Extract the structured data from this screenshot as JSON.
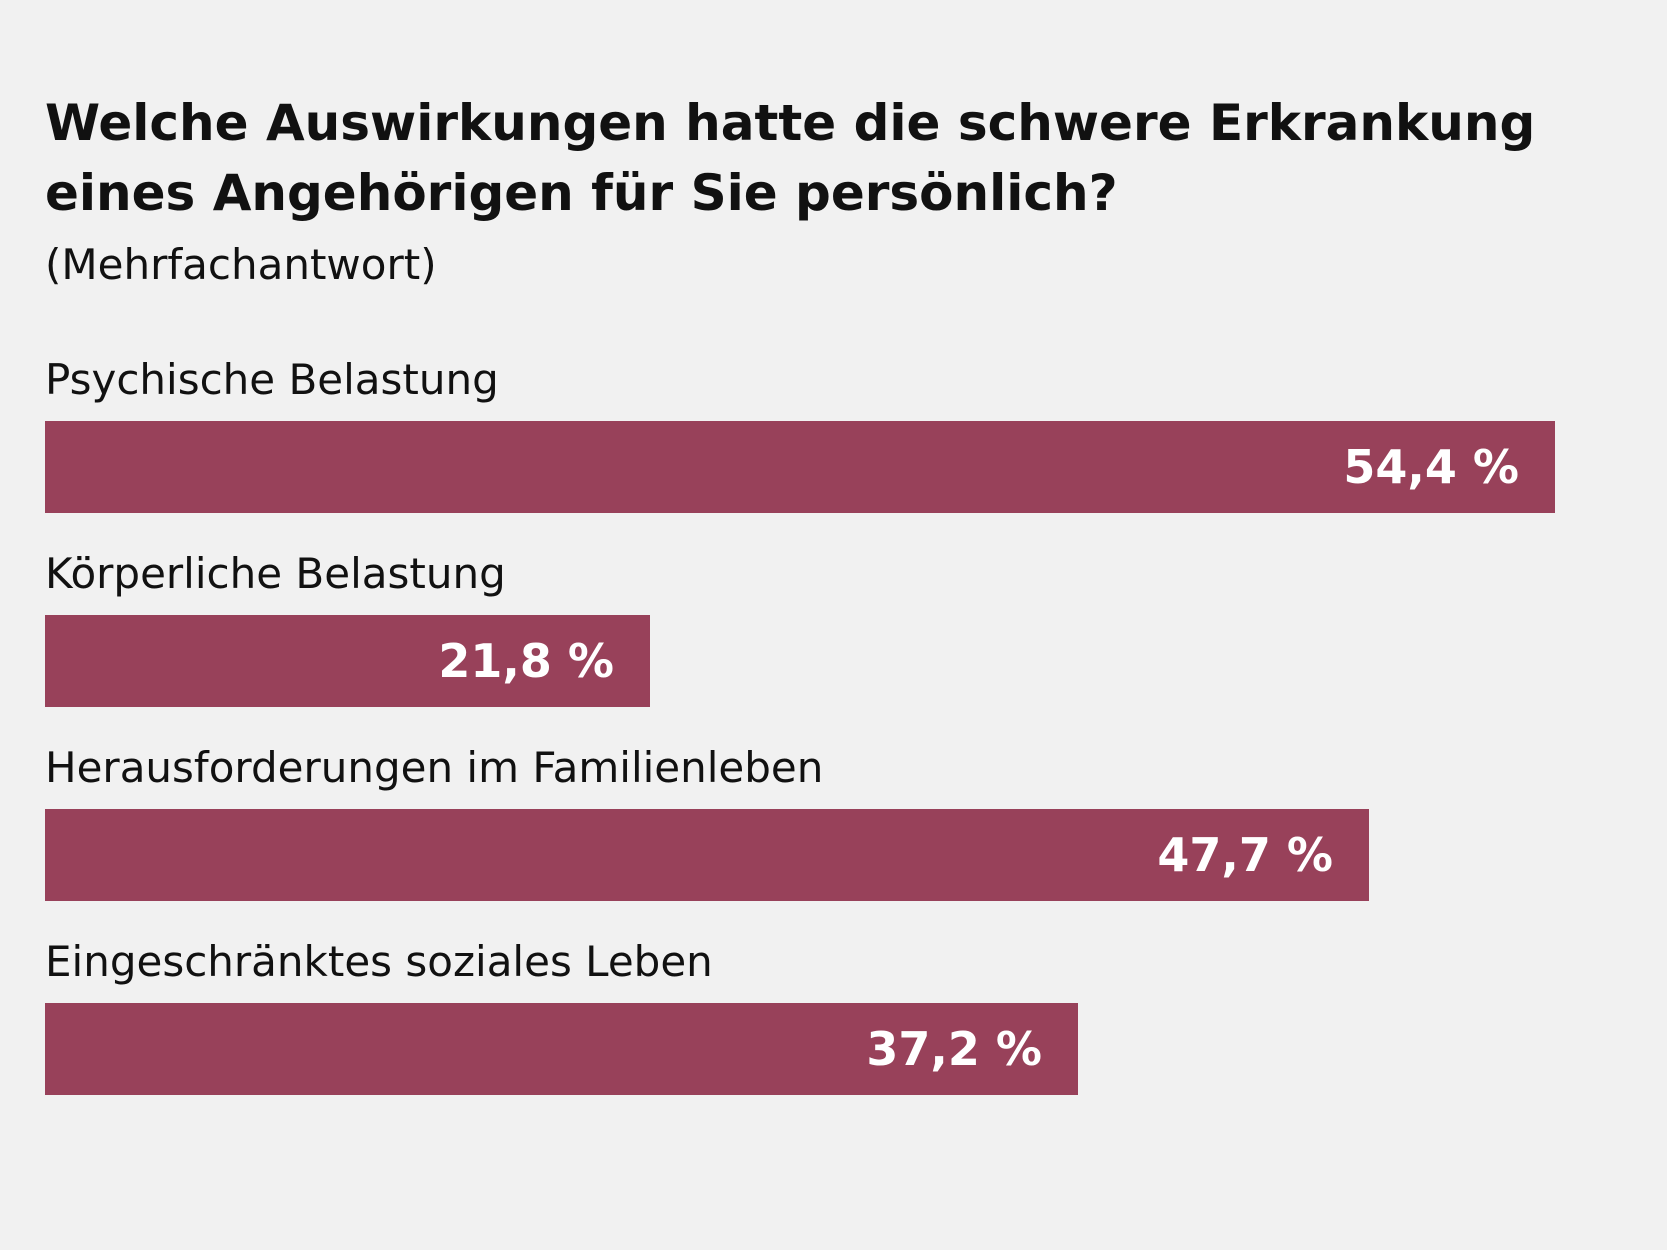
{
  "title": "Welche Auswirkungen hatte die schwere Erkrankung eines Angehörigen für Sie persönlich?",
  "subtitle": "(Mehrfachantwort)",
  "colors": {
    "background": "#f1f1f1",
    "bar": "#98415a",
    "text": "#111111",
    "value_text": "#ffffff"
  },
  "chart_data": {
    "type": "bar",
    "orientation": "horizontal",
    "title": "Welche Auswirkungen hatte die schwere Erkrankung eines Angehörigen für Sie persönlich?",
    "subtitle": "(Mehrfachantwort)",
    "categories": [
      "Psychische Belastung",
      "Körperliche Belastung",
      "Herausforderungen im Familienleben",
      "Eingeschränktes soziales Leben"
    ],
    "values": [
      54.4,
      21.8,
      47.7,
      37.2
    ],
    "value_labels": [
      "54,4 %",
      "21,8 %",
      "47,7 %",
      "37,2 %"
    ],
    "unit": "%",
    "xlim": [
      0,
      54.4
    ],
    "grid": false,
    "legend": "none"
  }
}
